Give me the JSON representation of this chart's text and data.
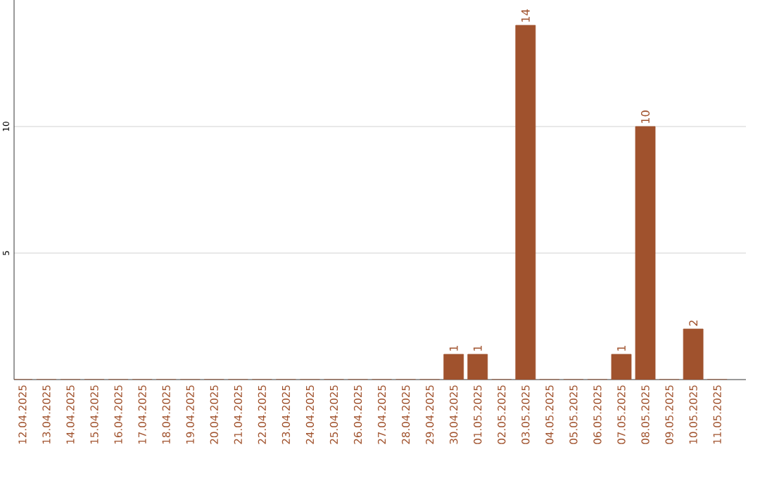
{
  "chart_data": {
    "type": "bar",
    "categories": [
      "12.04.2025",
      "13.04.2025",
      "14.04.2025",
      "15.04.2025",
      "16.04.2025",
      "17.04.2025",
      "18.04.2025",
      "19.04.2025",
      "20.04.2025",
      "21.04.2025",
      "22.04.2025",
      "23.04.2025",
      "24.04.2025",
      "25.04.2025",
      "26.04.2025",
      "27.04.2025",
      "28.04.2025",
      "29.04.2025",
      "30.04.2025",
      "01.05.2025",
      "02.05.2025",
      "03.05.2025",
      "04.05.2025",
      "05.05.2025",
      "06.05.2025",
      "07.05.2025",
      "08.05.2025",
      "09.05.2025",
      "10.05.2025",
      "11.05.2025"
    ],
    "values": [
      0,
      0,
      0,
      0,
      0,
      0,
      0,
      0,
      0,
      0,
      0,
      0,
      0,
      0,
      0,
      0,
      0,
      0,
      1,
      1,
      0,
      14,
      0,
      0,
      0,
      1,
      10,
      0,
      2,
      0
    ],
    "value_labels": [
      null,
      null,
      null,
      null,
      null,
      null,
      null,
      null,
      null,
      null,
      null,
      null,
      null,
      null,
      null,
      null,
      null,
      null,
      "1",
      "1",
      null,
      "14",
      null,
      null,
      null,
      "1",
      "10",
      null,
      "2",
      null
    ],
    "color": "#a0522d",
    "ylim": [
      0,
      15
    ],
    "yticks": [
      5,
      10
    ],
    "grid": "y"
  }
}
